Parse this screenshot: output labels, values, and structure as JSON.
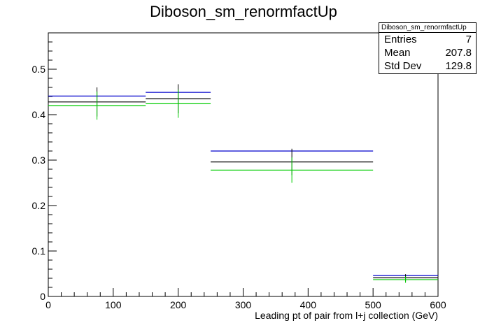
{
  "title": "Diboson_sm_renormfactUp",
  "stats": {
    "name": "Diboson_sm_renormfactUp",
    "rows": [
      {
        "label": "Entries",
        "value": "7"
      },
      {
        "label": "Mean",
        "value": "207.8"
      },
      {
        "label": "Std Dev",
        "value": "129.8"
      }
    ]
  },
  "chart_data": {
    "type": "bar",
    "title": "Diboson_sm_renormfactUp",
    "xlabel": "Leading pt of pair from l+j collection (GeV)",
    "ylabel": "",
    "xlim": [
      0,
      600
    ],
    "ylim": [
      0,
      0.58
    ],
    "x_ticks": [
      0,
      100,
      200,
      300,
      400,
      500,
      600
    ],
    "y_ticks": [
      0,
      0.1,
      0.2,
      0.3,
      0.4,
      0.5
    ],
    "x_tick_labels": [
      "0",
      "100",
      "200",
      "300",
      "400",
      "500",
      "600"
    ],
    "y_tick_labels": [
      "0",
      "0.1",
      "0.2",
      "0.3",
      "0.4",
      "0.5"
    ],
    "bin_edges": [
      0,
      150,
      250,
      500,
      600
    ],
    "series": [
      {
        "values": [
          0.441,
          0.449,
          0.32,
          0.046
        ],
        "color": "#0000cc"
      },
      {
        "values": [
          0.428,
          0.435,
          0.296,
          0.041
        ],
        "color": "#000000",
        "errors": [
          0.032,
          0.032,
          0.029,
          0.008
        ]
      },
      {
        "values": [
          0.42,
          0.424,
          0.278,
          0.037
        ],
        "color": "#00cc00",
        "errors": [
          0.031,
          0.031,
          0.028,
          0.007
        ]
      }
    ]
  }
}
